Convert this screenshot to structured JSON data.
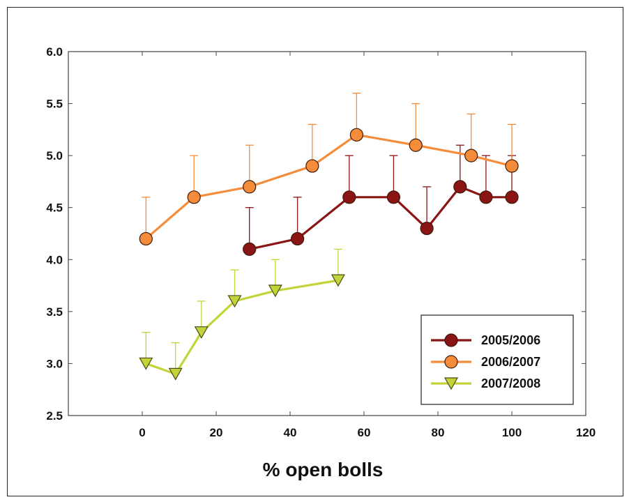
{
  "chart_data": {
    "type": "line",
    "title": "",
    "xlabel": "% open bolls",
    "ylabel": "",
    "xlim": [
      -20,
      120
    ],
    "ylim": [
      2.5,
      6.0
    ],
    "x_ticks": [
      0,
      20,
      40,
      60,
      80,
      100,
      120
    ],
    "y_ticks": [
      2.5,
      3.0,
      3.5,
      4.0,
      4.5,
      5.0,
      5.5,
      6.0
    ],
    "x_tick_labels": [
      "0",
      "20",
      "40",
      "60",
      "80",
      "100",
      "120"
    ],
    "y_tick_labels": [
      "2.5",
      "3.0",
      "3.5",
      "4.0",
      "4.5",
      "5.0",
      "5.5",
      "6.0"
    ],
    "grid": false,
    "legend_position": "lower-right",
    "series": [
      {
        "name": "2005/2006",
        "color": "#8b1414",
        "marker": "circle",
        "x": [
          29,
          42,
          56,
          68,
          77,
          86,
          93,
          100
        ],
        "y": [
          4.1,
          4.2,
          4.6,
          4.6,
          4.3,
          4.7,
          4.6,
          4.6
        ],
        "error_upper": [
          0.4,
          0.4,
          0.4,
          0.4,
          0.4,
          0.4,
          0.4,
          0.4
        ]
      },
      {
        "name": "2006/2007",
        "color": "#f58c3a",
        "marker": "circle",
        "x": [
          1,
          14,
          29,
          46,
          58,
          74,
          89,
          100
        ],
        "y": [
          4.2,
          4.6,
          4.7,
          4.9,
          5.2,
          5.1,
          5.0,
          4.9
        ],
        "error_upper": [
          0.4,
          0.4,
          0.4,
          0.4,
          0.4,
          0.4,
          0.4,
          0.4
        ]
      },
      {
        "name": "2007/2008",
        "color": "#c2d43a",
        "marker": "triangle-down",
        "x": [
          1,
          9,
          16,
          25,
          36,
          53
        ],
        "y": [
          3.0,
          2.9,
          3.3,
          3.6,
          3.7,
          3.8
        ],
        "error_upper": [
          0.3,
          0.3,
          0.3,
          0.3,
          0.3,
          0.3
        ]
      }
    ]
  }
}
